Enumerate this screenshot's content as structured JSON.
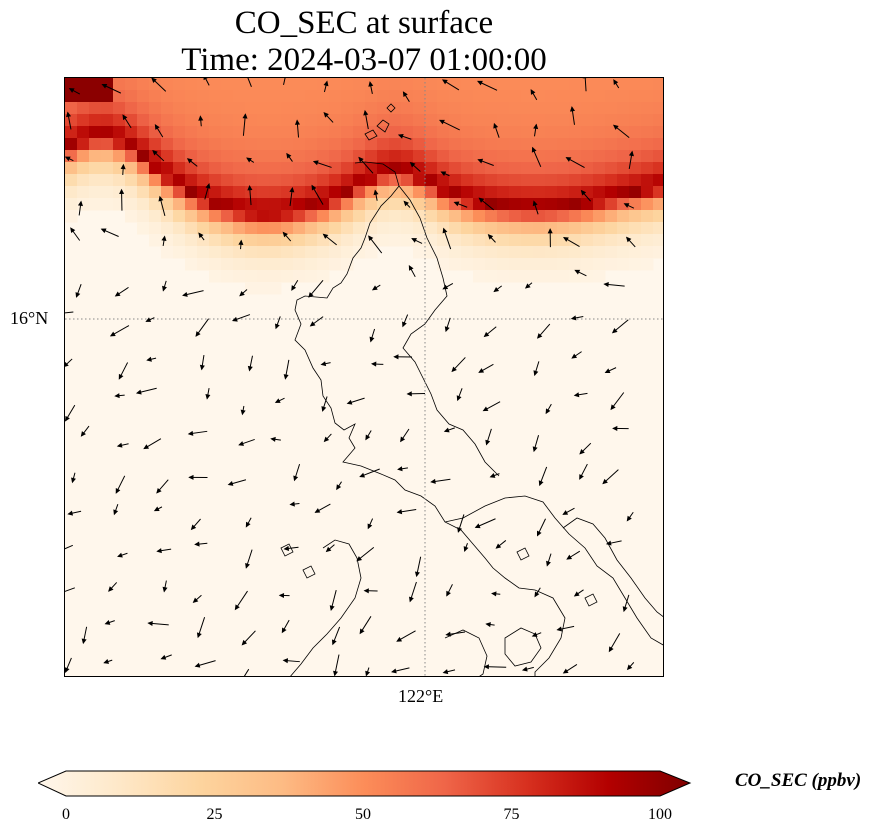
{
  "title": {
    "line1": "CO_SEC at surface",
    "line2": "Time: 2024-03-07 01:00:00"
  },
  "axes": {
    "lat_label": "16°N",
    "lon_label": "122°E"
  },
  "colorbar": {
    "label": "CO_SEC (ppbv)",
    "ticks": [
      "0",
      "25",
      "50",
      "75",
      "100"
    ],
    "min": 0,
    "max": 100,
    "colormap": "OrRd",
    "colors": [
      "#fff7ec",
      "#fee8c8",
      "#fdd49e",
      "#fdbb84",
      "#fc8d59",
      "#ef6548",
      "#d7301f",
      "#b30000",
      "#7f0000"
    ]
  },
  "map": {
    "gridlines": "dotted",
    "vector_field": "wind arrows",
    "coastlines": true
  }
}
